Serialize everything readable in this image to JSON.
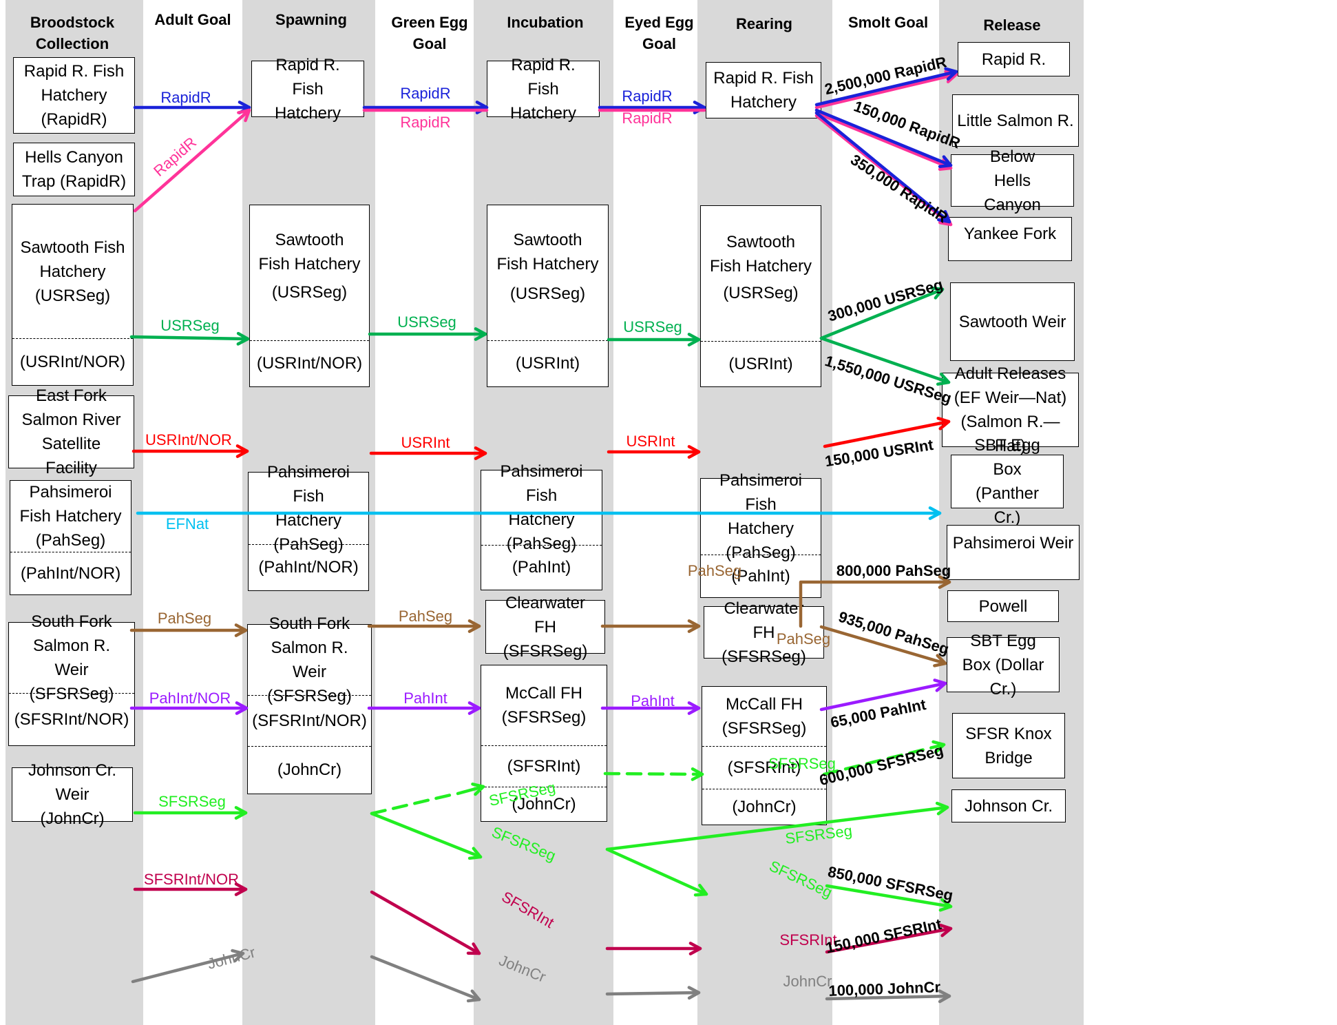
{
  "headers": {
    "broodstock": "Broodstock Collection",
    "adult_goal": "Adult Goal",
    "spawning": "Spawning",
    "green_egg": "Green Egg Goal",
    "incubation": "Incubation",
    "eyed_egg": "Eyed Egg Goal",
    "rearing": "Rearing",
    "smolt_goal": "Smolt Goal",
    "release": "Release"
  },
  "colors": {
    "RapidR": "#1a22d9",
    "RapidR_alt": "#ff3399",
    "USRSeg": "#00b050",
    "USRInt": "#ff0000",
    "EFNat": "#00c0f0",
    "PahSeg": "#996633",
    "PahInt": "#9b1bff",
    "SFSRSeg": "#22ee22",
    "SFSRInt": "#c0004d",
    "JohnCr": "#808080",
    "band": "#d9d9d9"
  },
  "broodstock": {
    "rapid": "Rapid R. Fish Hatchery (RapidR)",
    "hells": "Hells Canyon Trap (RapidR)",
    "sawtooth_a": "Sawtooth Fish Hatchery (USRSeg)",
    "sawtooth_b": "(USRInt/NOR)",
    "eastfork": "East Fork Salmon River Satellite Facility",
    "pah_a": "Pahsimeroi Fish Hatchery (PahSeg)",
    "pah_b": "(PahInt/NOR)",
    "sfsr_a": "South Fork Salmon R. Weir (SFSRSeg)",
    "sfsr_b": "(SFSRInt/NOR)",
    "johnson": "Johnson Cr. Weir (JohnCr)"
  },
  "spawning": {
    "rapid": "Rapid R. Fish Hatchery",
    "sawtooth_a": "Sawtooth Fish Hatchery",
    "sawtooth_a2": "(USRSeg)",
    "sawtooth_b": "(USRInt/NOR)",
    "pah_a": "Pahsimeroi Fish Hatchery (PahSeg)",
    "pah_b": "(PahInt/NOR)",
    "sfsr_a": "South Fork Salmon R. Weir (SFSRSeg)",
    "sfsr_b": "(SFSRInt/NOR)",
    "sfsr_c": "(JohnCr)"
  },
  "incubation": {
    "rapid": "Rapid R. Fish Hatchery",
    "sawtooth_a": "Sawtooth Fish Hatchery",
    "sawtooth_a2": "(USRSeg)",
    "sawtooth_b": "(USRInt)",
    "pah_a": "Pahsimeroi Fish Hatchery (PahSeg)",
    "pah_b": "(PahInt)",
    "clearwater": "Clearwater FH (SFSRSeg)",
    "mccall_a": "McCall FH (SFSRSeg)",
    "mccall_b": "(SFSRInt)",
    "mccall_c": "(JohnCr)"
  },
  "rearing": {
    "rapid": "Rapid R. Fish Hatchery",
    "sawtooth_a": "Sawtooth Fish Hatchery",
    "sawtooth_a2": "(USRSeg)",
    "sawtooth_b": "(USRInt)",
    "pah_a": "Pahsimeroi Fish Hatchery (PahSeg)",
    "pah_b": "(PahInt)",
    "clearwater": "Clearwater FH (SFSRSeg)",
    "mccall_a": "McCall FH (SFSRSeg)",
    "mccall_b": "(SFSRInt)",
    "mccall_c": "(JohnCr)"
  },
  "release": {
    "rapid": "Rapid R.",
    "little": "Little Salmon R.",
    "hells": "Below Hells Canyon",
    "yankee": "Yankee Fork",
    "sawtooth": "Sawtooth Weir",
    "adult": "Adult Releases (EF Weir—Nat) (Salmon R.—Hat)",
    "panther": "SBT Egg Box (Panther Cr.)",
    "pahweir": "Pahsimeroi Weir",
    "powell": "Powell",
    "dollar": "SBT Egg Box (Dollar Cr.)",
    "knox": "SFSR Knox Bridge",
    "johnson": "Johnson Cr."
  },
  "labels": {
    "rapidr": "RapidR",
    "usrseg": "USRSeg",
    "usrint_nor": "USRInt/NOR",
    "usrint": "USRInt",
    "efnat": "EFNat",
    "pahseg": "PahSeg",
    "pahint_nor": "PahInt/NOR",
    "pahint": "PahInt",
    "sfsrseg": "SFSRSeg",
    "sfsrint_nor": "SFSRInt/NOR",
    "sfsrint": "SFSRInt",
    "johncr": "JohnCr"
  },
  "smolt_goals": {
    "rapid_rapid": "2,500,000 RapidR",
    "rapid_little": "150,000 RapidR",
    "rapid_hells": "350,000 RapidR",
    "usrseg_yankee": "300,000 USRSeg",
    "usrseg_sawtooth": "1,550,000 USRSeg",
    "usrint_sawtooth": "150,000 USRInt",
    "pahseg_panther": "800,000 PahSeg",
    "pahseg_weir": "935,000 PahSeg",
    "pahint_weir": "65,000 PahInt",
    "sfsrseg_powell": "600,000 SFSRSeg",
    "sfsrseg_knox": "850,000 SFSRSeg",
    "sfsrint_knox": "150,000 SFSRInt",
    "johncr_johnson": "100,000 JohnCr"
  }
}
